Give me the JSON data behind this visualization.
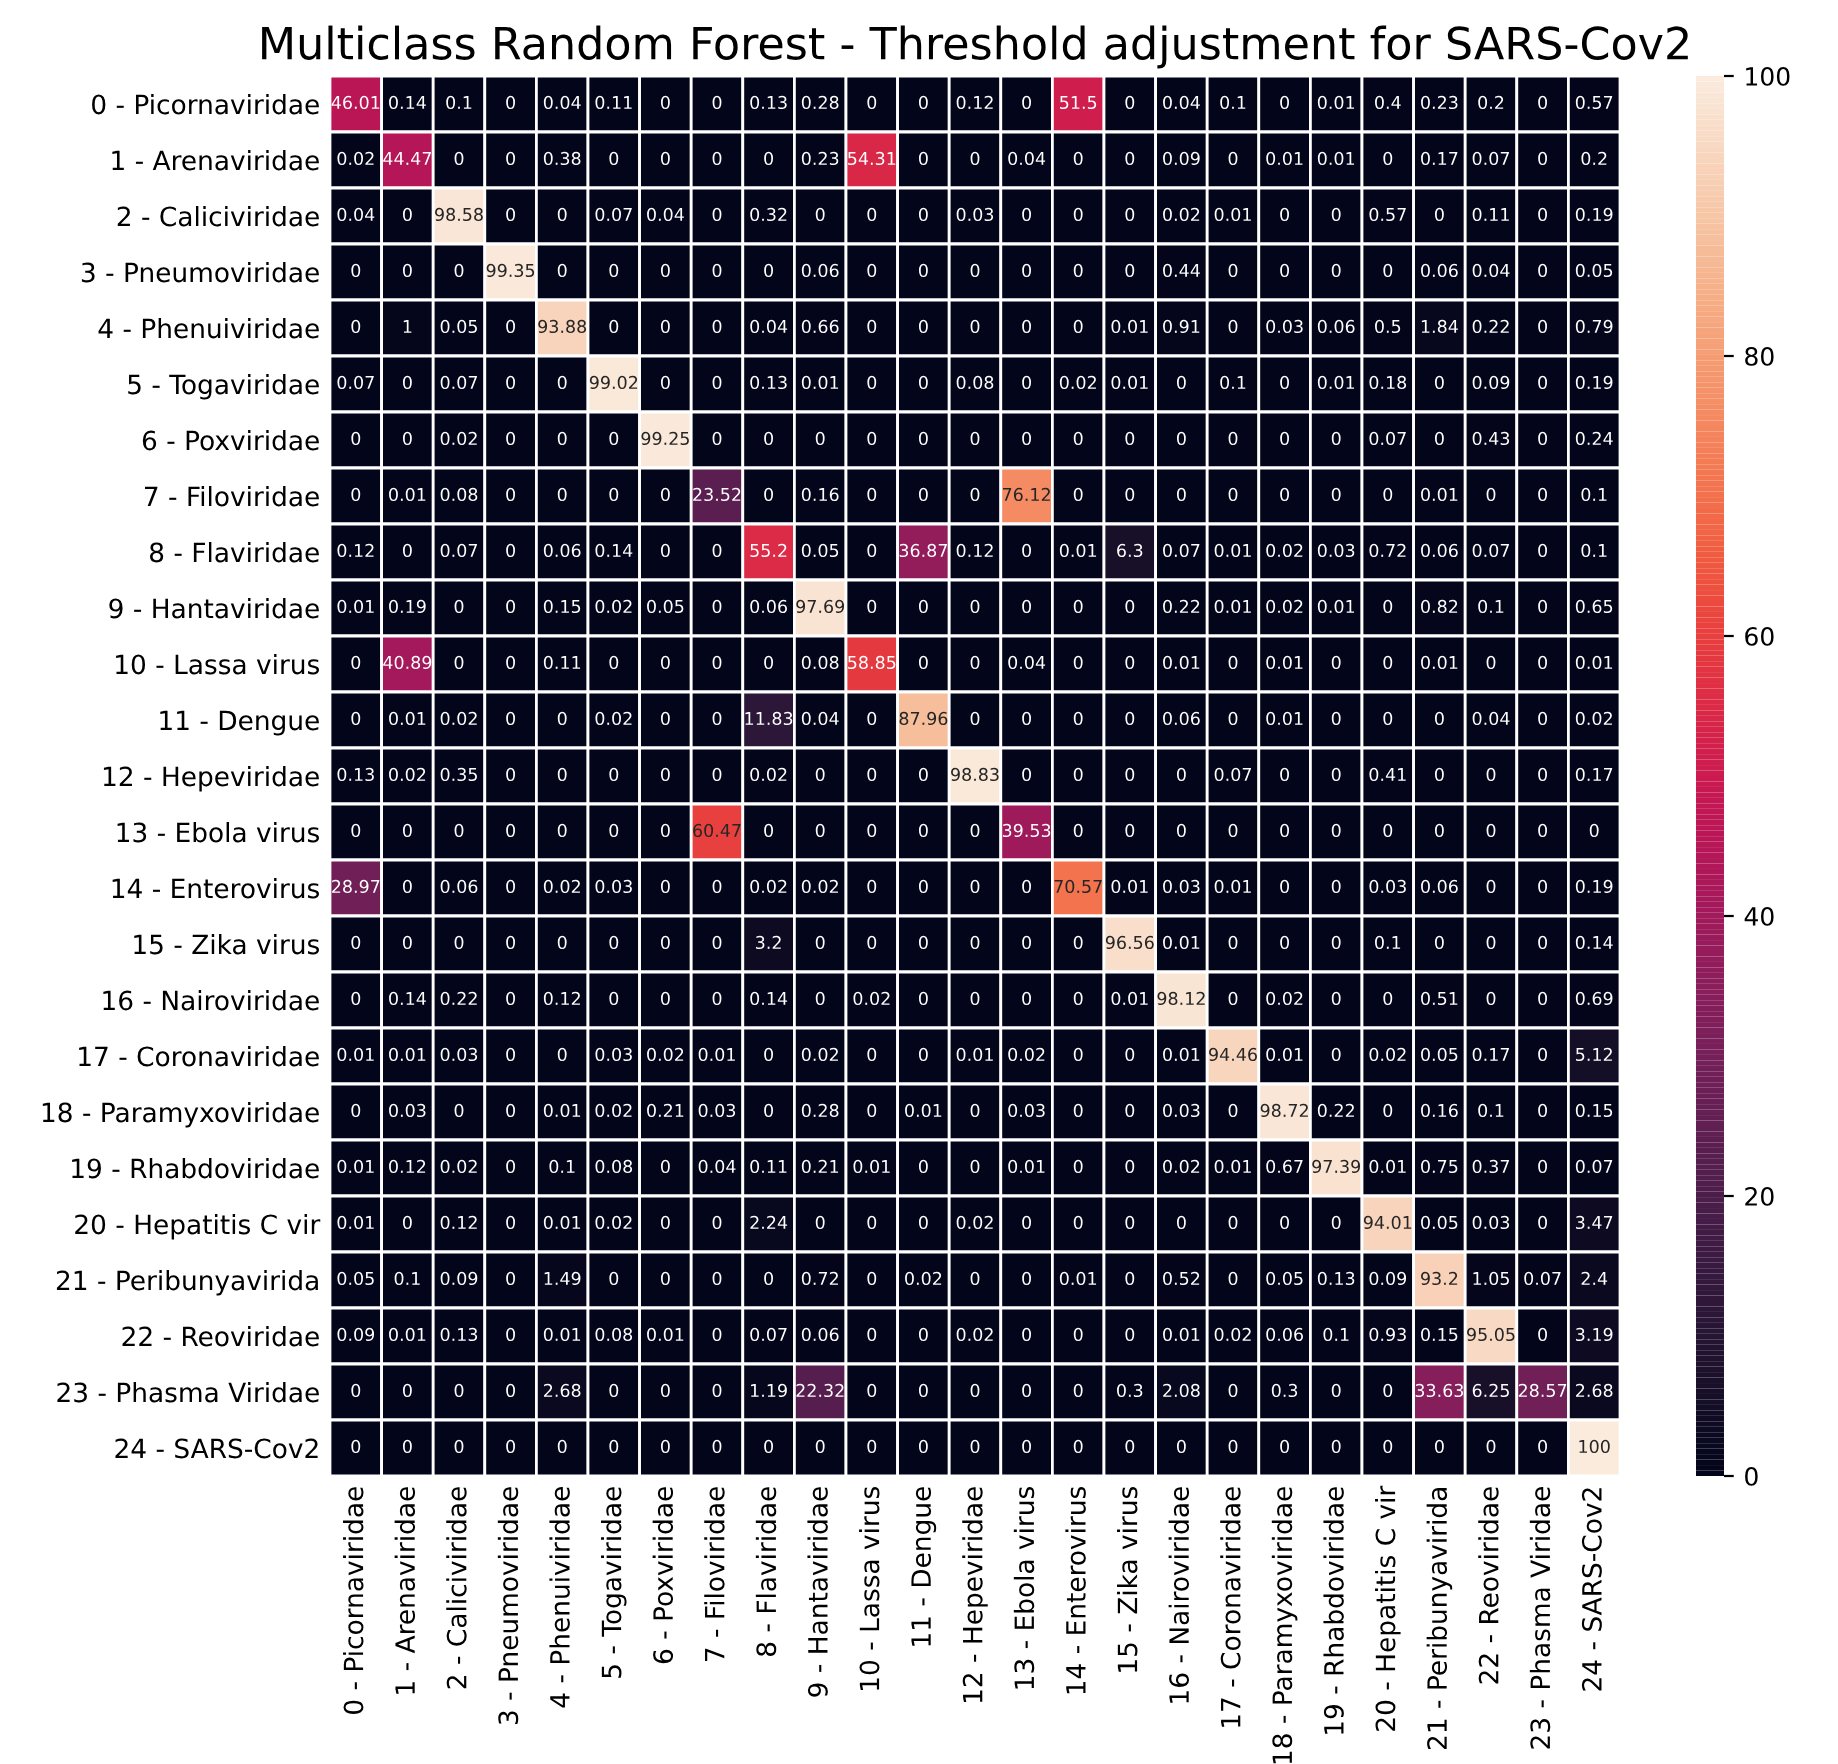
{
  "chart_data": {
    "type": "heatmap",
    "title": "Multiclass Random Forest - Threshold adjustment for SARS-Cov2",
    "categories": [
      "0 - Picornaviridae",
      "1 - Arenaviridae",
      "2 - Caliciviridae",
      "3 - Pneumoviridae",
      "4 - Phenuiviridae",
      "5 - Togaviridae",
      "6 - Poxviridae",
      "7 - Filoviridae",
      "8 - Flaviridae",
      "9 - Hantaviridae",
      "10 - Lassa virus",
      "11 - Dengue",
      "12 - Hepeviridae",
      "13 - Ebola virus",
      "14 - Enterovirus",
      "15 - Zika virus",
      "16 - Nairoviridae",
      "17 - Coronaviridae",
      "18 - Paramyxoviridae",
      "19 - Rhabdoviridae",
      "20 - Hepatitis C vir",
      "21 - Peribunyavirida",
      "22 - Reoviridae",
      "23 - Phasma Viridae",
      "24 - SARS-Cov2"
    ],
    "y_categories": [
      "0 - Picornaviridae",
      "1 - Arenaviridae",
      "2 - Caliciviridae",
      "3 - Pneumoviridae",
      "4 - Phenuiviridae",
      "5 - Togaviridae",
      "6 - Poxviridae",
      "7 - Filoviridae",
      "8 - Flaviridae",
      "9 - Hantaviridae",
      "10 - Lassa virus",
      "11 - Dengue",
      "12 - Hepeviridae",
      "13 - Ebola virus",
      "14 - Enterovirus",
      "15 - Zika virus",
      "16 - Nairoviridae",
      "17 - Coronaviridae",
      "18 - Paramyxoviridae",
      "19 - Rhabdoviridae",
      "20 - Hepatitis C vir",
      "21 - Peribunyavirida",
      "22 - Reoviridae",
      "23 - Phasma Viridae",
      "24 - SARS-Cov2"
    ],
    "cells": [
      [
        46.01,
        0.14,
        0.1,
        0,
        0.04,
        0.11,
        0,
        0,
        0.13,
        0.28,
        0,
        0,
        0.12,
        0,
        51.5,
        0,
        0.04,
        0.1,
        0,
        0.01,
        0.4,
        0.23,
        0.2,
        0,
        0.57
      ],
      [
        0.02,
        44.47,
        0,
        0,
        0.38,
        0,
        0,
        0,
        0,
        0.23,
        54.31,
        0,
        0,
        0.04,
        0,
        0,
        0.09,
        0,
        0.01,
        0.01,
        0,
        0.17,
        0.07,
        0,
        0.2
      ],
      [
        0.04,
        0,
        98.58,
        0,
        0,
        0.07,
        0.04,
        0,
        0.32,
        0,
        0,
        0,
        0.03,
        0,
        0,
        0,
        0.02,
        0.01,
        0,
        0,
        0.57,
        0,
        0.11,
        0,
        0.19
      ],
      [
        0,
        0,
        0,
        99.35,
        0,
        0,
        0,
        0,
        0,
        0.06,
        0,
        0,
        0,
        0,
        0,
        0,
        0.44,
        0,
        0,
        0,
        0,
        0.06,
        0.04,
        0,
        0.05
      ],
      [
        0,
        1,
        0.05,
        0,
        93.88,
        0,
        0,
        0,
        0.04,
        0.66,
        0,
        0,
        0,
        0,
        0,
        0.01,
        0.91,
        0,
        0.03,
        0.06,
        0.5,
        1.84,
        0.22,
        0,
        0.79
      ],
      [
        0.07,
        0,
        0.07,
        0,
        0,
        99.02,
        0,
        0,
        0.13,
        0.01,
        0,
        0,
        0.08,
        0,
        0.02,
        0.01,
        0,
        0.1,
        0,
        0.01,
        0.18,
        0,
        0.09,
        0,
        0.19
      ],
      [
        0,
        0,
        0.02,
        0,
        0,
        0,
        99.25,
        0,
        0,
        0,
        0,
        0,
        0,
        0,
        0,
        0,
        0,
        0,
        0,
        0,
        0.07,
        0,
        0.43,
        0,
        0.24
      ],
      [
        0,
        0.01,
        0.08,
        0,
        0,
        0,
        0,
        23.52,
        0,
        0.16,
        0,
        0,
        0,
        76.12,
        0,
        0,
        0,
        0,
        0,
        0,
        0,
        0.01,
        0,
        0,
        0.1
      ],
      [
        0.12,
        0,
        0.07,
        0,
        0.06,
        0.14,
        0,
        0,
        55.2,
        0.05,
        0,
        36.87,
        0.12,
        0,
        0.01,
        6.3,
        0.07,
        0.01,
        0.02,
        0.03,
        0.72,
        0.06,
        0.07,
        0,
        0.1
      ],
      [
        0.01,
        0.19,
        0,
        0,
        0.15,
        0.02,
        0.05,
        0,
        0.06,
        97.69,
        0,
        0,
        0,
        0,
        0,
        0,
        0.22,
        0.01,
        0.02,
        0.01,
        0,
        0.82,
        0.1,
        0,
        0.65
      ],
      [
        0,
        40.89,
        0,
        0,
        0.11,
        0,
        0,
        0,
        0,
        0.08,
        58.85,
        0,
        0,
        0.04,
        0,
        0,
        0.01,
        0,
        0.01,
        0,
        0,
        0.01,
        0,
        0,
        0.01
      ],
      [
        0,
        0.01,
        0.02,
        0,
        0,
        0.02,
        0,
        0,
        11.83,
        0.04,
        0,
        87.96,
        0,
        0,
        0,
        0,
        0.06,
        0,
        0.01,
        0,
        0,
        0,
        0.04,
        0,
        0.02
      ],
      [
        0.13,
        0.02,
        0.35,
        0,
        0,
        0,
        0,
        0,
        0.02,
        0,
        0,
        0,
        98.83,
        0,
        0,
        0,
        0,
        0.07,
        0,
        0,
        0.41,
        0,
        0,
        0,
        0.17
      ],
      [
        0,
        0,
        0,
        0,
        0,
        0,
        0,
        60.47,
        0,
        0,
        0,
        0,
        0,
        39.53,
        0,
        0,
        0,
        0,
        0,
        0,
        0,
        0,
        0,
        0,
        0
      ],
      [
        28.97,
        0,
        0.06,
        0,
        0.02,
        0.03,
        0,
        0,
        0.02,
        0.02,
        0,
        0,
        0,
        0,
        70.57,
        0.01,
        0.03,
        0.01,
        0,
        0,
        0.03,
        0.06,
        0,
        0,
        0.19
      ],
      [
        0,
        0,
        0,
        0,
        0,
        0,
        0,
        0,
        3.2,
        0,
        0,
        0,
        0,
        0,
        0,
        96.56,
        0.01,
        0,
        0,
        0,
        0.1,
        0,
        0,
        0,
        0.14
      ],
      [
        0,
        0.14,
        0.22,
        0,
        0.12,
        0,
        0,
        0,
        0.14,
        0,
        0.02,
        0,
        0,
        0,
        0,
        0.01,
        98.12,
        0,
        0.02,
        0,
        0,
        0.51,
        0,
        0,
        0.69
      ],
      [
        0.01,
        0.01,
        0.03,
        0,
        0,
        0.03,
        0.02,
        0.01,
        0,
        0.02,
        0,
        0,
        0.01,
        0.02,
        0,
        0,
        0.01,
        94.46,
        0.01,
        0,
        0.02,
        0.05,
        0.17,
        0,
        5.12
      ],
      [
        0,
        0.03,
        0,
        0,
        0.01,
        0.02,
        0.21,
        0.03,
        0,
        0.28,
        0,
        0.01,
        0,
        0.03,
        0,
        0,
        0.03,
        0,
        98.72,
        0.22,
        0,
        0.16,
        0.1,
        0,
        0.15
      ],
      [
        0.01,
        0.12,
        0.02,
        0,
        0.1,
        0.08,
        0,
        0.04,
        0.11,
        0.21,
        0.01,
        0,
        0,
        0.01,
        0,
        0,
        0.02,
        0.01,
        0.67,
        97.39,
        0.01,
        0.75,
        0.37,
        0,
        0.07
      ],
      [
        0.01,
        0,
        0.12,
        0,
        0.01,
        0.02,
        0,
        0,
        2.24,
        0,
        0,
        0,
        0.02,
        0,
        0,
        0,
        0,
        0,
        0,
        0,
        94.01,
        0.05,
        0.03,
        0,
        3.47
      ],
      [
        0.05,
        0.1,
        0.09,
        0,
        1.49,
        0,
        0,
        0,
        0,
        0.72,
        0,
        0.02,
        0,
        0,
        0.01,
        0,
        0.52,
        0,
        0.05,
        0.13,
        0.09,
        93.2,
        1.05,
        0.07,
        2.4
      ],
      [
        0.09,
        0.01,
        0.13,
        0,
        0.01,
        0.08,
        0.01,
        0,
        0.07,
        0.06,
        0,
        0,
        0.02,
        0,
        0,
        0,
        0.01,
        0.02,
        0.06,
        0.1,
        0.93,
        0.15,
        95.05,
        0,
        3.19
      ],
      [
        0,
        0,
        0,
        0,
        2.68,
        0,
        0,
        0,
        1.19,
        22.32,
        0,
        0,
        0,
        0,
        0,
        0.3,
        2.08,
        0,
        0.3,
        0,
        0,
        33.63,
        6.25,
        28.57,
        2.68
      ],
      [
        0,
        0,
        0,
        0,
        0,
        0,
        0,
        0,
        0,
        0,
        0,
        0,
        0,
        0,
        0,
        0,
        0,
        0,
        0,
        0,
        0,
        0,
        0,
        0,
        100
      ]
    ],
    "data_labels": true,
    "clim": [
      0,
      100
    ],
    "cticks": [
      0,
      20,
      40,
      60,
      80,
      100
    ]
  }
}
